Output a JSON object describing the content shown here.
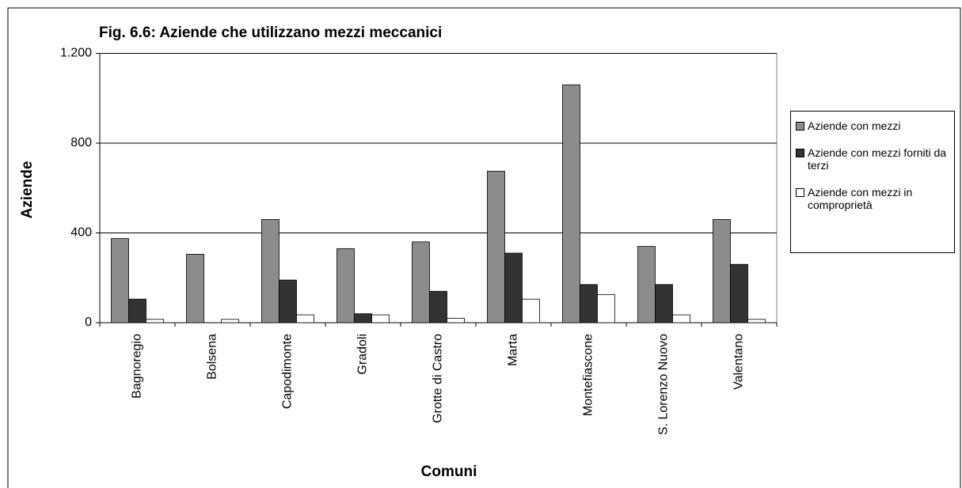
{
  "chart_data": {
    "type": "bar",
    "title": "Fig. 6.6: Aziende che utilizzano mezzi meccanici",
    "x_label": "Comuni",
    "y_label": "Aziende",
    "categories": [
      "Bagnoregio",
      "Bolsena",
      "Capodimonte",
      "Gradoli",
      "Grotte di Castro",
      "Marta",
      "Montefiascone",
      "S. Lorenzo Nuovo",
      "Valentano"
    ],
    "series": [
      {
        "name": "Aziende con mezzi",
        "color": "#8c8c8c",
        "values": [
          375,
          305,
          460,
          330,
          360,
          675,
          1060,
          340,
          460
        ]
      },
      {
        "name": "Aziende con mezzi forniti da terzi",
        "color": "#333333",
        "values": [
          105,
          0,
          190,
          40,
          140,
          310,
          170,
          170,
          260
        ]
      },
      {
        "name": "Aziende con mezzi in comproprietà",
        "color": "#ffffff",
        "values": [
          15,
          15,
          35,
          35,
          20,
          105,
          125,
          35,
          15
        ]
      }
    ],
    "ylim": [
      0,
      1200
    ],
    "yticks": [
      0,
      400,
      800,
      {
        "value": 1200,
        "label": "1.200"
      }
    ],
    "grid": true,
    "legend": "right"
  }
}
